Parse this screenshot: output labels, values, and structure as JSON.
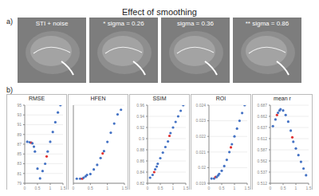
{
  "title": "Effect of smoothing",
  "panel_a": {
    "label": "a)",
    "images": [
      {
        "caption": "STI + noise"
      },
      {
        "caption": "* sigma = 0.26"
      },
      {
        "caption": "sigma = 0.36"
      },
      {
        "caption": "** sigma = 0.86"
      }
    ]
  },
  "panel_b": {
    "label": "b)"
  },
  "chart_data": [
    {
      "type": "scatter",
      "title": "RMSE",
      "marker": "circle",
      "x": [
        0.1,
        0.2,
        0.26,
        0.3,
        0.36,
        0.4,
        0.5,
        0.6,
        0.7,
        0.8,
        0.86,
        0.9,
        1.0,
        1.1,
        1.2,
        1.3,
        1.4
      ],
      "values": [
        87.5,
        87.4,
        87.3,
        87.2,
        86.5,
        85.5,
        82,
        80,
        81.5,
        83,
        84.5,
        85.5,
        87.5,
        89.5,
        91.5,
        93.5,
        95
      ],
      "colors": [
        "#4472c4",
        "#4472c4",
        "#e03030",
        "#4472c4",
        "#4472c4",
        "#4472c4",
        "#4472c4",
        "#4472c4",
        "#4472c4",
        "#4472c4",
        "#e03030",
        "#4472c4",
        "#4472c4",
        "#4472c4",
        "#4472c4",
        "#4472c4",
        "#4472c4"
      ],
      "xlim": [
        0,
        1.5
      ],
      "xticks": [
        0,
        0.5,
        1,
        1.5
      ],
      "ylim": [
        79,
        95
      ],
      "yticks": [
        79,
        81,
        83,
        85,
        87,
        89,
        91,
        93,
        95
      ]
    },
    {
      "type": "scatter",
      "title": "HFEN",
      "marker": "circle",
      "tick_labels": "x",
      "x": [
        0.1,
        0.2,
        0.26,
        0.3,
        0.36,
        0.4,
        0.5,
        0.6,
        0.7,
        0.8,
        0.86,
        0.9,
        1.0,
        1.1,
        1.2,
        1.3,
        1.4
      ],
      "values": [
        41,
        41,
        41,
        41.2,
        41.5,
        41.8,
        42,
        43,
        44,
        45.5,
        46.5,
        47,
        49,
        51,
        53,
        55,
        56
      ],
      "colors": [
        "#4472c4",
        "#4472c4",
        "#e03030",
        "#4472c4",
        "#4472c4",
        "#4472c4",
        "#4472c4",
        "#4472c4",
        "#4472c4",
        "#4472c4",
        "#e03030",
        "#4472c4",
        "#4472c4",
        "#4472c4",
        "#4472c4",
        "#4472c4",
        "#4472c4"
      ],
      "xlim": [
        0,
        1.5
      ],
      "xticks": [
        0,
        0.5,
        1,
        1.5
      ],
      "ylim": [
        40,
        57
      ]
    },
    {
      "type": "scatter",
      "title": "SSIM",
      "marker": "circle",
      "x": [
        0.1,
        0.2,
        0.26,
        0.3,
        0.36,
        0.4,
        0.5,
        0.6,
        0.7,
        0.8,
        0.86,
        0.9,
        1.0,
        1.1,
        1.2,
        1.3,
        1.4
      ],
      "values": [
        0.83,
        0.835,
        0.84,
        0.845,
        0.85,
        0.855,
        0.865,
        0.875,
        0.885,
        0.895,
        0.905,
        0.91,
        0.92,
        0.93,
        0.94,
        0.95,
        0.96
      ],
      "colors": [
        "#4472c4",
        "#4472c4",
        "#e03030",
        "#4472c4",
        "#4472c4",
        "#4472c4",
        "#4472c4",
        "#4472c4",
        "#4472c4",
        "#4472c4",
        "#e03030",
        "#4472c4",
        "#4472c4",
        "#4472c4",
        "#4472c4",
        "#4472c4",
        "#4472c4"
      ],
      "xlim": [
        0,
        1.5
      ],
      "xticks": [
        0,
        0.5,
        1,
        1.5
      ],
      "ylim": [
        0.82,
        0.96
      ],
      "yticks": [
        0.82,
        0.84,
        0.86,
        0.88,
        0.9,
        0.92,
        0.94,
        0.96
      ]
    },
    {
      "type": "scatter",
      "title": "ROI",
      "marker": "circle",
      "x": [
        0.1,
        0.2,
        0.26,
        0.3,
        0.36,
        0.4,
        0.5,
        0.6,
        0.7,
        0.8,
        0.86,
        0.9,
        1.0,
        1.1,
        1.2,
        1.3,
        1.4
      ],
      "values": [
        0.0193,
        0.0193,
        0.0194,
        0.0194,
        0.0195,
        0.0196,
        0.0198,
        0.0201,
        0.0205,
        0.021,
        0.0213,
        0.0215,
        0.022,
        0.0225,
        0.023,
        0.0235,
        0.024
      ],
      "colors": [
        "#4472c4",
        "#4472c4",
        "#e03030",
        "#4472c4",
        "#4472c4",
        "#4472c4",
        "#4472c4",
        "#4472c4",
        "#4472c4",
        "#4472c4",
        "#e03030",
        "#4472c4",
        "#4472c4",
        "#4472c4",
        "#4472c4",
        "#4472c4",
        "#4472c4"
      ],
      "xlim": [
        0,
        1.5
      ],
      "xticks": [
        0,
        0.5,
        1,
        1.5
      ],
      "ylim": [
        0.019,
        0.024
      ],
      "yticks": [
        0.019,
        0.02,
        0.021,
        0.022,
        0.023,
        0.024
      ]
    },
    {
      "type": "scatter",
      "title": "mean r",
      "marker": "circle",
      "x": [
        0.1,
        0.2,
        0.26,
        0.3,
        0.36,
        0.4,
        0.5,
        0.6,
        0.7,
        0.8,
        0.86,
        0.9,
        1.0,
        1.1,
        1.2,
        1.3,
        1.4
      ],
      "values": [
        0.64,
        0.655,
        0.665,
        0.67,
        0.675,
        0.678,
        0.675,
        0.665,
        0.65,
        0.63,
        0.615,
        0.605,
        0.59,
        0.575,
        0.56,
        0.545,
        0.53
      ],
      "colors": [
        "#4472c4",
        "#4472c4",
        "#e03030",
        "#4472c4",
        "#4472c4",
        "#4472c4",
        "#4472c4",
        "#4472c4",
        "#4472c4",
        "#4472c4",
        "#e03030",
        "#4472c4",
        "#4472c4",
        "#4472c4",
        "#4472c4",
        "#4472c4",
        "#4472c4"
      ],
      "xlim": [
        0,
        1.5
      ],
      "xticks": [
        0,
        0.5,
        1,
        1.5
      ],
      "ylim": [
        0.512,
        0.687
      ],
      "yticks": [
        0.512,
        0.537,
        0.562,
        0.587,
        0.612,
        0.637,
        0.662,
        0.687
      ]
    }
  ]
}
